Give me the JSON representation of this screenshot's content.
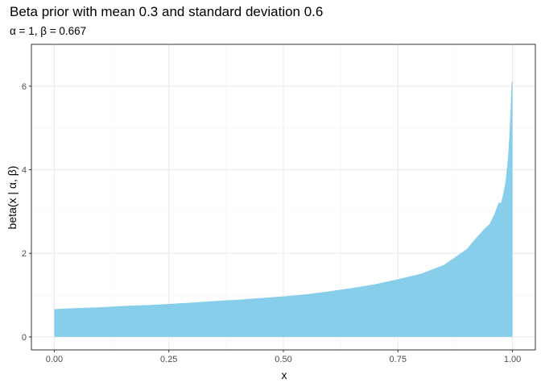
{
  "chart_data": {
    "type": "area",
    "title": "Beta prior with mean 0.3 and standard deviation 0.6",
    "subtitle": "α = 1, β = 0.667",
    "xlabel": "x",
    "ylabel": "beta(x | α, β)",
    "xlim": [
      -0.05,
      1.05
    ],
    "ylim": [
      -0.31,
      7.0
    ],
    "x_ticks": [
      0.0,
      0.25,
      0.5,
      0.75,
      1.0
    ],
    "x_tick_labels": [
      "0.00",
      "0.25",
      "0.50",
      "0.75",
      "1.00"
    ],
    "y_ticks": [
      0,
      2,
      4,
      6
    ],
    "y_tick_labels": [
      "0",
      "2",
      "4",
      "6"
    ],
    "grid": true,
    "fill_color": "#87CEEB",
    "series": [
      {
        "x": [
          0.0,
          0.05,
          0.1,
          0.15,
          0.2,
          0.25,
          0.3,
          0.35,
          0.4,
          0.45,
          0.5,
          0.55,
          0.6,
          0.65,
          0.7,
          0.75,
          0.8,
          0.85,
          0.9,
          0.92,
          0.94,
          0.95,
          0.96,
          0.97,
          0.975,
          0.98,
          0.985,
          0.99,
          0.993,
          0.996,
          0.998,
          0.999,
          1.0
        ],
        "values": [
          0.667,
          0.69,
          0.71,
          0.74,
          0.76,
          0.79,
          0.82,
          0.86,
          0.89,
          0.93,
          0.97,
          1.02,
          1.09,
          1.17,
          1.26,
          1.38,
          1.51,
          1.72,
          2.1,
          2.36,
          2.6,
          2.7,
          2.92,
          3.22,
          3.2,
          3.42,
          3.72,
          4.25,
          4.75,
          5.45,
          6.08,
          6.1,
          6.15
        ]
      }
    ]
  },
  "colors": {
    "panel_border": "#333333",
    "grid_major": "#ebebeb",
    "grid_minor": "#f5f5f5",
    "tick": "#333333"
  }
}
